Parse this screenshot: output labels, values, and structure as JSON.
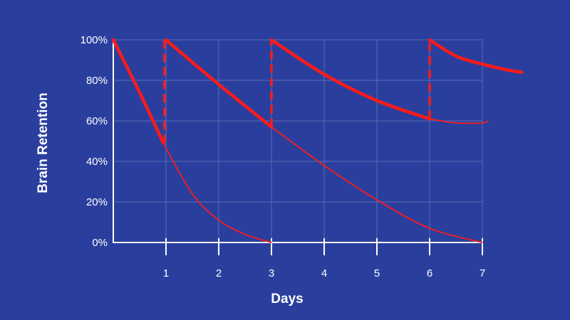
{
  "chart_data": {
    "type": "line",
    "title": "",
    "xlabel": "Days",
    "ylabel": "Brain Retention",
    "xlim": [
      0,
      7
    ],
    "ylim": [
      0,
      100
    ],
    "x_ticks": [
      1,
      2,
      3,
      4,
      5,
      6,
      7
    ],
    "y_ticks": [
      {
        "value": 0,
        "label": "0%"
      },
      {
        "value": 20,
        "label": "20%"
      },
      {
        "value": 40,
        "label": "40%"
      },
      {
        "value": 60,
        "label": "60%"
      },
      {
        "value": 80,
        "label": "80%"
      },
      {
        "value": 100,
        "label": "100%"
      }
    ],
    "grid": true,
    "colors": {
      "background": "#2a3f9d",
      "grid": "#5a6bb8",
      "axis": "#ffffff",
      "curve": "#ff1a1a"
    },
    "series": [
      {
        "role": "review-path",
        "x": [
          0,
          0.5,
          0.95
        ],
        "y": [
          100,
          74,
          49
        ]
      },
      {
        "role": "review-jump",
        "x": [
          0.97,
          0.97
        ],
        "y": [
          49,
          100
        ]
      },
      {
        "role": "review-path",
        "x": [
          1,
          2,
          3
        ],
        "y": [
          100,
          78,
          57
        ]
      },
      {
        "role": "review-jump",
        "x": [
          3,
          3
        ],
        "y": [
          57,
          100
        ]
      },
      {
        "role": "review-path",
        "x": [
          3,
          4,
          5,
          6
        ],
        "y": [
          100,
          83,
          70,
          61
        ]
      },
      {
        "role": "review-jump",
        "x": [
          6,
          6
        ],
        "y": [
          61,
          100
        ]
      },
      {
        "role": "review-path",
        "x": [
          6,
          6.5,
          7,
          7.5,
          7.75
        ],
        "y": [
          100,
          92,
          88,
          85,
          84
        ]
      },
      {
        "role": "decay",
        "x": [
          0.97,
          1.5,
          2,
          2.5,
          3
        ],
        "y": [
          48,
          24,
          11,
          4,
          0
        ]
      },
      {
        "role": "decay",
        "x": [
          3,
          4,
          5,
          6,
          7
        ],
        "y": [
          57,
          38,
          21,
          7,
          0
        ]
      },
      {
        "role": "decay",
        "x": [
          6,
          6.5,
          7,
          7.1
        ],
        "y": [
          61,
          59,
          59,
          60
        ]
      }
    ]
  }
}
